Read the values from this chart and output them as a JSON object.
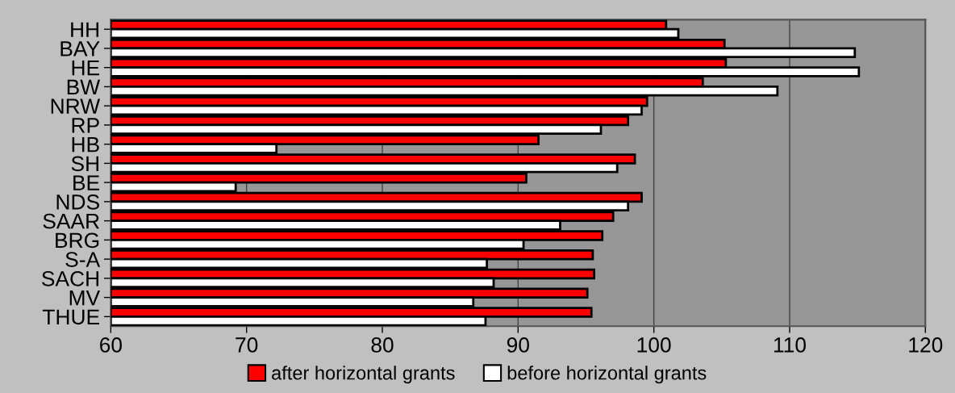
{
  "chart_data": {
    "type": "bar",
    "orientation": "horizontal",
    "categories": [
      "HH",
      "BAY",
      "HE",
      "BW",
      "NRW",
      "RP",
      "HB",
      "SH",
      "BE",
      "NDS",
      "SAAR",
      "BRG",
      "S-A",
      "SACH",
      "MV",
      "THUE"
    ],
    "series": [
      {
        "name": "after horizontal grants",
        "color": "#ff0000",
        "values": [
          100.9,
          105.2,
          105.3,
          103.6,
          99.5,
          98.1,
          91.5,
          98.6,
          90.6,
          99.1,
          97.0,
          96.2,
          95.5,
          95.6,
          95.1,
          95.4
        ]
      },
      {
        "name": "before horizontal grants",
        "color": "#ffffff",
        "values": [
          101.8,
          114.8,
          115.1,
          109.1,
          99.1,
          96.1,
          72.2,
          97.3,
          69.2,
          98.1,
          93.1,
          90.4,
          87.7,
          88.2,
          86.7,
          87.6
        ]
      }
    ],
    "xlim": [
      60,
      120
    ],
    "xticks": [
      60,
      70,
      80,
      90,
      100,
      110,
      120
    ],
    "grid": "x",
    "legend": "bottom"
  }
}
